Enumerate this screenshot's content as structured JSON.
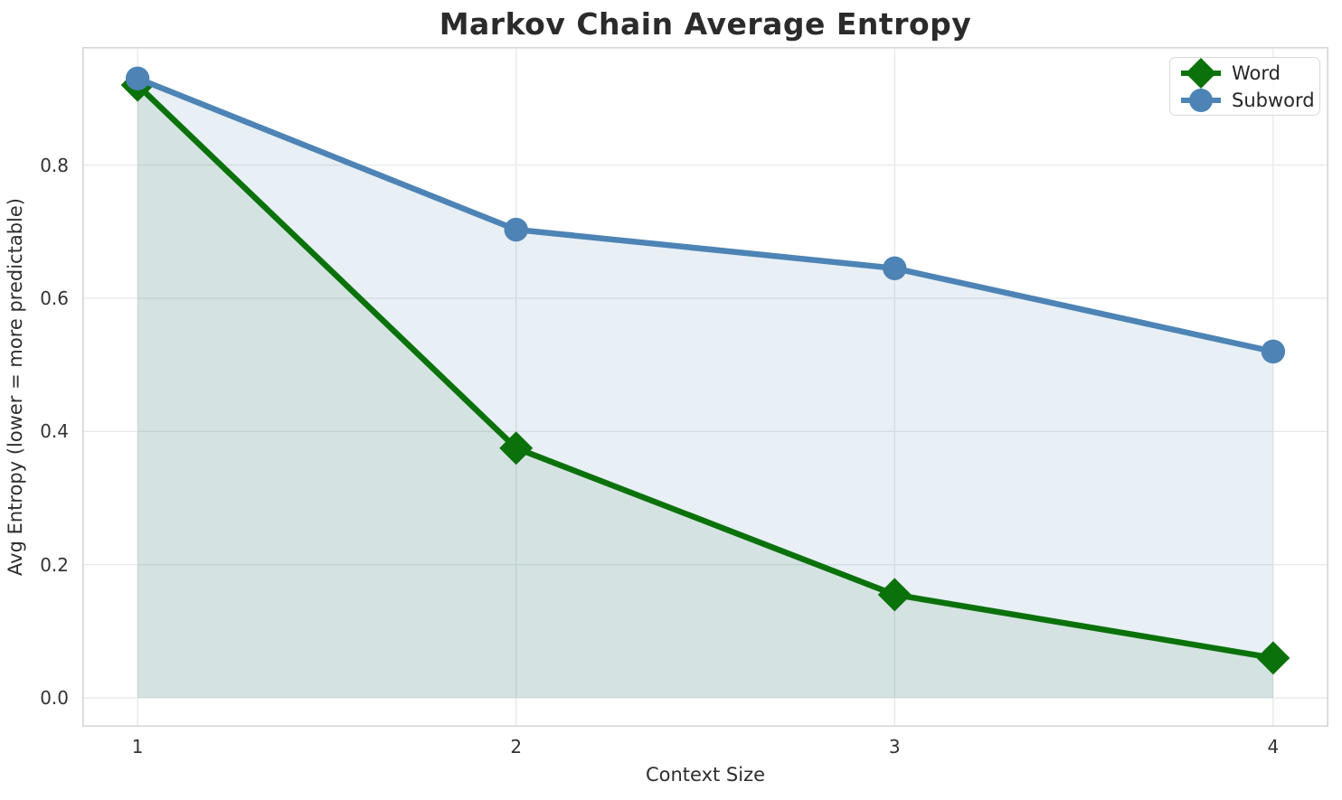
{
  "figure": {
    "title": "Markov Chain Average Entropy",
    "xlabel": "Context Size",
    "ylabel": "Avg Entropy (lower = more predictable)"
  },
  "legend": {
    "position": "upper right",
    "items": [
      {
        "label": "Word",
        "marker": "diamond",
        "color": "#0b720b"
      },
      {
        "label": "Subword",
        "marker": "circle",
        "color": "#4d84b5"
      }
    ]
  },
  "chart_data": {
    "type": "line",
    "title": "Markov Chain Average Entropy",
    "xlabel": "Context Size",
    "ylabel": "Avg Entropy (lower = more predictable)",
    "x": [
      1,
      2,
      3,
      4
    ],
    "series": [
      {
        "name": "Word",
        "marker": "diamond",
        "color": "#0b720b",
        "fill_color": "rgba(11,114,11,0.09)",
        "values": [
          0.92,
          0.375,
          0.155,
          0.06
        ]
      },
      {
        "name": "Subword",
        "marker": "circle",
        "color": "#4d84b5",
        "fill_color": "rgba(77,132,181,0.13)",
        "values": [
          0.93,
          0.703,
          0.645,
          0.52
        ]
      }
    ],
    "xticks": [
      1,
      2,
      3,
      4
    ],
    "xtick_labels": [
      "1",
      "2",
      "3",
      "4"
    ],
    "yticks": [
      0.0,
      0.2,
      0.4,
      0.6,
      0.8
    ],
    "ytick_labels": [
      "0.0",
      "0.2",
      "0.4",
      "0.6",
      "0.8"
    ],
    "xlim": [
      0.854,
      4.146
    ],
    "ylim": [
      -0.0434,
      0.9772
    ],
    "area_fill_baseline": 0.0,
    "grid": true,
    "legend_position": "upper right"
  },
  "colors": {
    "text": "#2b2b2b",
    "tick_text": "#333333",
    "grid": "#e8eaea",
    "spine": "#d6d6d6",
    "background": "#ffffff"
  }
}
